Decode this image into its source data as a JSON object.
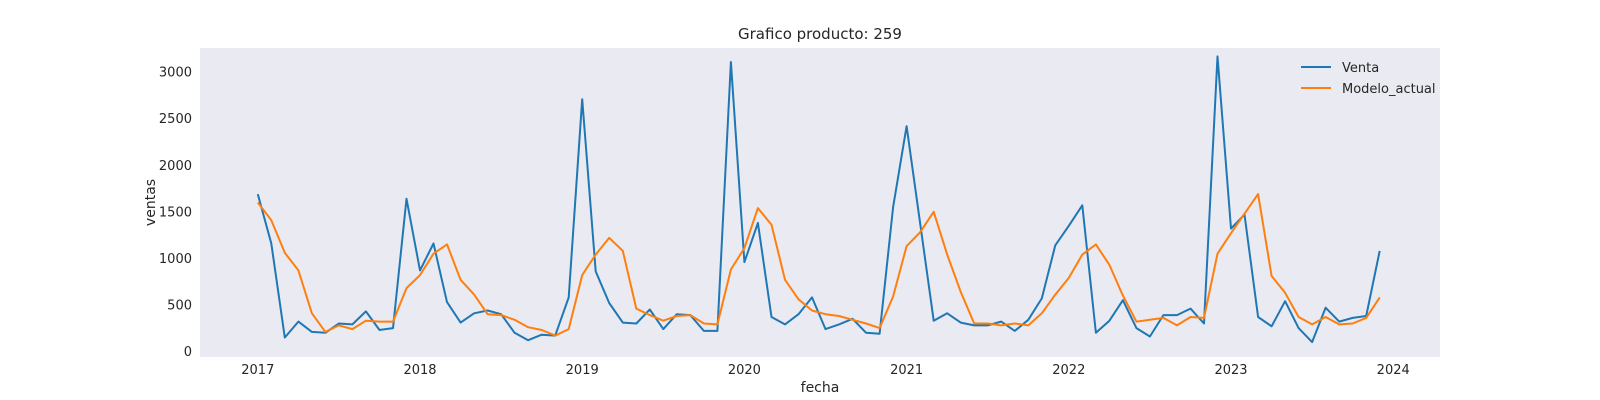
{
  "chart_data": {
    "type": "line",
    "title": "Grafico producto: 259",
    "xlabel": "fecha",
    "ylabel": "ventas",
    "x_ticks": [
      "2017",
      "2018",
      "2019",
      "2020",
      "2021",
      "2022",
      "2023",
      "2024"
    ],
    "y_ticks": [
      "0",
      "500",
      "1000",
      "1500",
      "2000",
      "2500",
      "3000"
    ],
    "ylim": [
      -60,
      3260
    ],
    "xlim": [
      "2016-08-23",
      "2024-04-15"
    ],
    "grid": false,
    "legend_position": "top-right",
    "x": [
      "2017-01",
      "2017-02",
      "2017-03",
      "2017-04",
      "2017-05",
      "2017-06",
      "2017-07",
      "2017-08",
      "2017-09",
      "2017-10",
      "2017-11",
      "2017-12",
      "2018-01",
      "2018-02",
      "2018-03",
      "2018-04",
      "2018-05",
      "2018-06",
      "2018-07",
      "2018-08",
      "2018-09",
      "2018-10",
      "2018-11",
      "2018-12",
      "2019-01",
      "2019-02",
      "2019-03",
      "2019-04",
      "2019-05",
      "2019-06",
      "2019-07",
      "2019-08",
      "2019-09",
      "2019-10",
      "2019-11",
      "2019-12",
      "2020-01",
      "2020-02",
      "2020-03",
      "2020-04",
      "2020-05",
      "2020-06",
      "2020-07",
      "2020-08",
      "2020-09",
      "2020-10",
      "2020-11",
      "2020-12",
      "2021-01",
      "2021-02",
      "2021-03",
      "2021-04",
      "2021-05",
      "2021-06",
      "2021-07",
      "2021-08",
      "2021-09",
      "2021-10",
      "2021-11",
      "2021-12",
      "2022-01",
      "2022-02",
      "2022-03",
      "2022-04",
      "2022-05",
      "2022-06",
      "2022-07",
      "2022-08",
      "2022-09",
      "2022-10",
      "2022-11",
      "2022-12",
      "2023-01",
      "2023-02",
      "2023-03",
      "2023-04",
      "2023-05",
      "2023-06",
      "2023-07",
      "2023-08",
      "2023-09",
      "2023-10",
      "2023-11",
      "2023-12"
    ],
    "series": [
      {
        "name": "Venta",
        "color": "#1f77b4",
        "values": [
          1690,
          1160,
          150,
          320,
          210,
          200,
          300,
          290,
          430,
          230,
          250,
          1640,
          870,
          1160,
          530,
          310,
          410,
          440,
          400,
          200,
          120,
          180,
          170,
          580,
          2710,
          860,
          520,
          310,
          300,
          450,
          240,
          400,
          390,
          220,
          220,
          3110,
          960,
          1380,
          370,
          290,
          400,
          580,
          240,
          290,
          350,
          200,
          190,
          1550,
          2420,
          1380,
          330,
          410,
          310,
          280,
          280,
          320,
          220,
          340,
          570,
          1140,
          1350,
          1570,
          200,
          330,
          550,
          250,
          160,
          390,
          390,
          460,
          300,
          3170,
          1320,
          1470,
          370,
          270,
          540,
          250,
          100,
          470,
          320,
          360,
          380,
          1080
        ]
      },
      {
        "name": "Modelo_actual",
        "color": "#ff7f0e",
        "values": [
          1600,
          1410,
          1060,
          870,
          410,
          210,
          280,
          240,
          330,
          320,
          320,
          680,
          820,
          1050,
          1150,
          770,
          610,
          400,
          390,
          340,
          260,
          230,
          170,
          240,
          820,
          1040,
          1220,
          1080,
          460,
          390,
          330,
          380,
          390,
          300,
          290,
          880,
          1110,
          1540,
          1360,
          770,
          560,
          440,
          400,
          380,
          340,
          300,
          250,
          590,
          1130,
          1280,
          1500,
          1040,
          640,
          300,
          300,
          280,
          300,
          280,
          410,
          610,
          790,
          1040,
          1150,
          930,
          600,
          320,
          340,
          360,
          280,
          370,
          360,
          1050,
          1270,
          1480,
          1690,
          810,
          630,
          370,
          290,
          370,
          290,
          300,
          360,
          580
        ]
      }
    ]
  }
}
